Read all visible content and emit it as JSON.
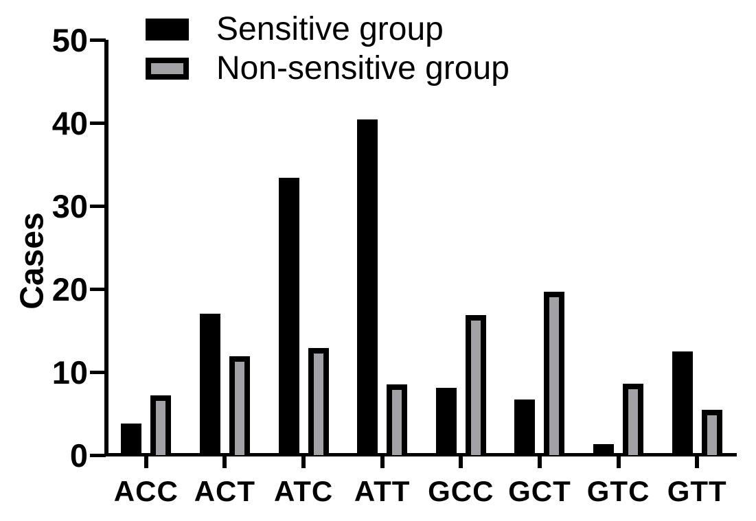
{
  "colors": {
    "foreground": "#000000",
    "background": "#ffffff",
    "sensitive_fill": "#000000",
    "non_sensitive_fill": "#a2a2a6",
    "non_sensitive_border": "#000000"
  },
  "chart_data": {
    "type": "bar",
    "title": "",
    "xlabel": "",
    "ylabel": "Cases",
    "categories": [
      "ACC",
      "ACT",
      "ATC",
      "ATT",
      "GCC",
      "GCT",
      "GTC",
      "GTT"
    ],
    "series": [
      {
        "name": "Sensitive group",
        "style": "solid-black",
        "color": "#000000",
        "values": [
          3.8,
          17.0,
          33.4,
          40.4,
          8.1,
          6.7,
          1.3,
          12.5
        ]
      },
      {
        "name": "Non-sensitive group",
        "style": "gray-with-black-border",
        "color": "#a2a2a6",
        "border_color": "#000000",
        "values": [
          7.2,
          11.9,
          12.9,
          8.5,
          16.9,
          19.7,
          8.6,
          5.5
        ]
      }
    ],
    "y_ticks": [
      0,
      10,
      20,
      30,
      40,
      50
    ],
    "ylim": [
      0,
      50
    ],
    "grid": false,
    "legend_position": "top-left"
  }
}
